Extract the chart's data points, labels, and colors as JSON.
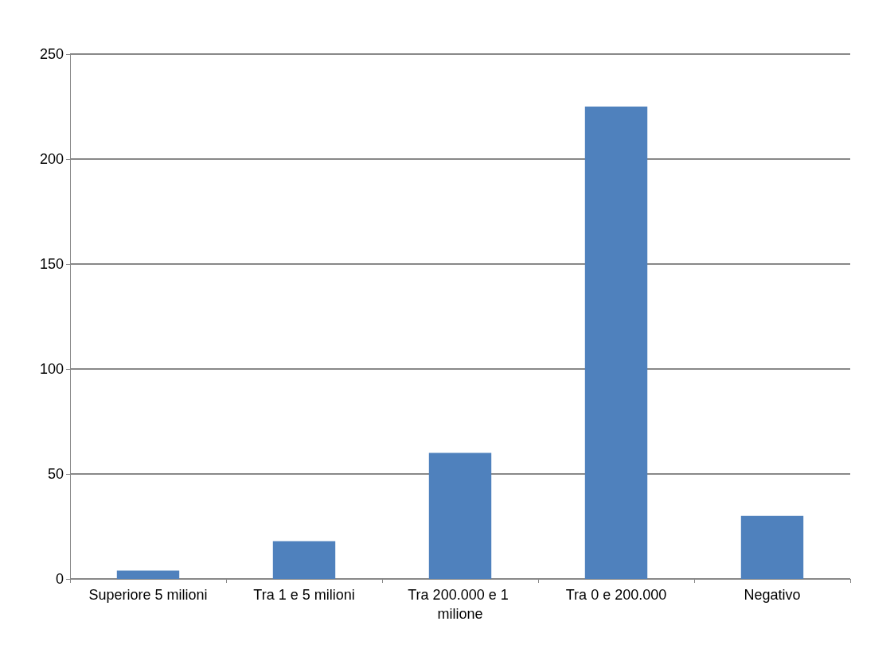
{
  "chart_data": {
    "type": "bar",
    "categories": [
      "Superiore 5 milioni",
      "Tra 1 e 5 milioni",
      "Tra 200.000 e 1 milione",
      "Tra 0 e 200.000",
      "Negativo"
    ],
    "values": [
      4,
      18,
      60,
      225,
      30
    ],
    "color": "#4f81bd",
    "ylim": [
      0,
      250
    ],
    "yticks": [
      0,
      50,
      100,
      150,
      200,
      250
    ],
    "grid": "y"
  }
}
